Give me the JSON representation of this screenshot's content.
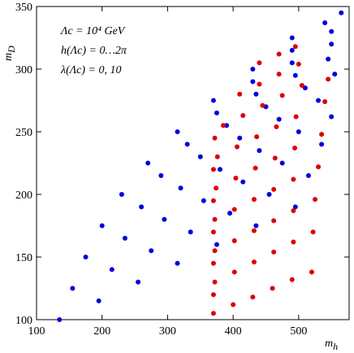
{
  "chart_data": {
    "type": "scatter",
    "annotations": [
      "Λc = 10⁴ GeV",
      "h(Λc) = 0…2π",
      "λ(Λc) = 0, 10"
    ],
    "x_label": {
      "symbol": "m",
      "subscript": "h"
    },
    "y_label": {
      "symbol": "m",
      "subscript": "D"
    },
    "xlim": [
      100,
      577
    ],
    "ylim": [
      100,
      350
    ],
    "xticks": [
      100,
      200,
      300,
      400,
      500
    ],
    "yticks": [
      100,
      150,
      200,
      250,
      300,
      350
    ],
    "series": [
      {
        "color": "#0000e0",
        "x": [
          135,
          195,
          255,
          315,
          375,
          435,
          495,
          155,
          215,
          275,
          335,
          395,
          455,
          515,
          175,
          235,
          295,
          355,
          415,
          475,
          535,
          200,
          260,
          320,
          380,
          440,
          500,
          550,
          230,
          290,
          350,
          410,
          470,
          530,
          270,
          330,
          390,
          450,
          510,
          555,
          315,
          375,
          435,
          495,
          545,
          370,
          430,
          490,
          550,
          430,
          490,
          550,
          490,
          540,
          565
        ],
        "y": [
          100,
          115,
          130,
          145,
          160,
          175,
          190,
          125,
          140,
          155,
          170,
          185,
          200,
          215,
          150,
          165,
          180,
          195,
          210,
          225,
          240,
          175,
          190,
          205,
          220,
          235,
          250,
          262,
          200,
          215,
          230,
          245,
          260,
          275,
          225,
          240,
          255,
          270,
          285,
          296,
          250,
          265,
          280,
          295,
          308,
          275,
          290,
          305,
          320,
          300,
          315,
          330,
          325,
          337,
          345
        ]
      },
      {
        "color": "#e00000",
        "x": [
          370,
          400,
          430,
          460,
          490,
          520,
          372,
          402,
          432,
          462,
          492,
          522,
          372,
          402,
          432,
          462,
          492,
          525,
          372,
          402,
          432,
          462,
          492,
          530,
          374,
          404,
          434,
          464,
          494,
          535,
          376,
          406,
          436,
          466,
          496,
          540,
          385,
          415,
          445,
          475,
          505,
          545,
          410,
          440,
          470,
          500,
          440,
          470,
          495,
          370,
          370,
          370,
          370,
          370,
          372
        ],
        "y": [
          105,
          112,
          118,
          125,
          132,
          138,
          130,
          138,
          146,
          154,
          162,
          170,
          155,
          163,
          171,
          179,
          187,
          196,
          180,
          188,
          196,
          204,
          212,
          222,
          205,
          213,
          221,
          229,
          237,
          248,
          230,
          238,
          246,
          254,
          262,
          274,
          255,
          263,
          271,
          279,
          287,
          292,
          280,
          288,
          296,
          304,
          305,
          312,
          318,
          120,
          145,
          170,
          195,
          220,
          245
        ]
      }
    ]
  }
}
